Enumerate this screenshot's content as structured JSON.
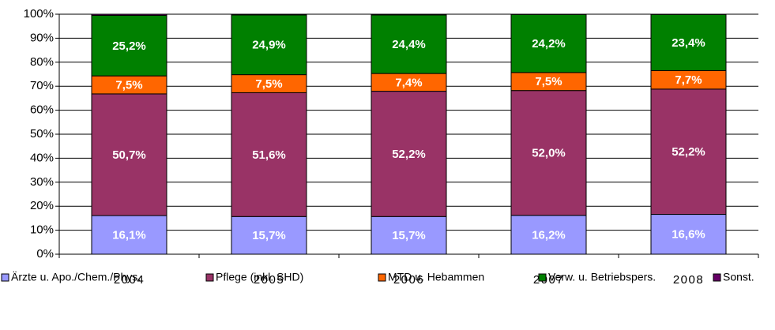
{
  "chart_data": {
    "type": "stacked_bar",
    "categories": [
      "2004",
      "2005",
      "2006",
      "2007",
      "2008"
    ],
    "series": [
      {
        "name": "Ärzte u. Apo./Chem./Phys.",
        "color": "#9999ff",
        "values": [
          16.1,
          15.7,
          15.7,
          16.2,
          16.6
        ],
        "value_labels": [
          "16,1%",
          "15,7%",
          "15,7%",
          "16,2%",
          "16,6%"
        ]
      },
      {
        "name": "Pflege (inkl. SHD)",
        "color": "#993366",
        "values": [
          50.7,
          51.6,
          52.2,
          52.0,
          52.2
        ],
        "value_labels": [
          "50,7%",
          "51,6%",
          "52,2%",
          "52,0%",
          "52,2%"
        ]
      },
      {
        "name": "MTD u. Hebammen",
        "color": "#ff6600",
        "values": [
          7.5,
          7.5,
          7.4,
          7.5,
          7.7
        ],
        "value_labels": [
          "7,5%",
          "7,5%",
          "7,4%",
          "7,5%",
          "7,7%"
        ]
      },
      {
        "name": "Verw. u. Betriebspers.",
        "color": "#008000",
        "values": [
          25.2,
          24.9,
          24.4,
          24.2,
          23.4
        ],
        "value_labels": [
          "25,2%",
          "24,9%",
          "24,4%",
          "24,2%",
          "23,4%"
        ]
      },
      {
        "name": "Sonst.",
        "color": "#660066",
        "values": [
          0.5,
          0.3,
          0.3,
          0.1,
          0.1
        ]
      }
    ],
    "ylim": [
      0,
      100
    ],
    "yticks": [
      {
        "value": 0,
        "label": "0%"
      },
      {
        "value": 10,
        "label": "10%"
      },
      {
        "value": 20,
        "label": "20%"
      },
      {
        "value": 30,
        "label": "30%"
      },
      {
        "value": 40,
        "label": "40%"
      },
      {
        "value": 50,
        "label": "50%"
      },
      {
        "value": 60,
        "label": "60%"
      },
      {
        "value": 70,
        "label": "70%"
      },
      {
        "value": 80,
        "label": "80%"
      },
      {
        "value": 90,
        "label": "90%"
      },
      {
        "value": 100,
        "label": "100%"
      }
    ],
    "grid": true,
    "legend": "bottom"
  }
}
